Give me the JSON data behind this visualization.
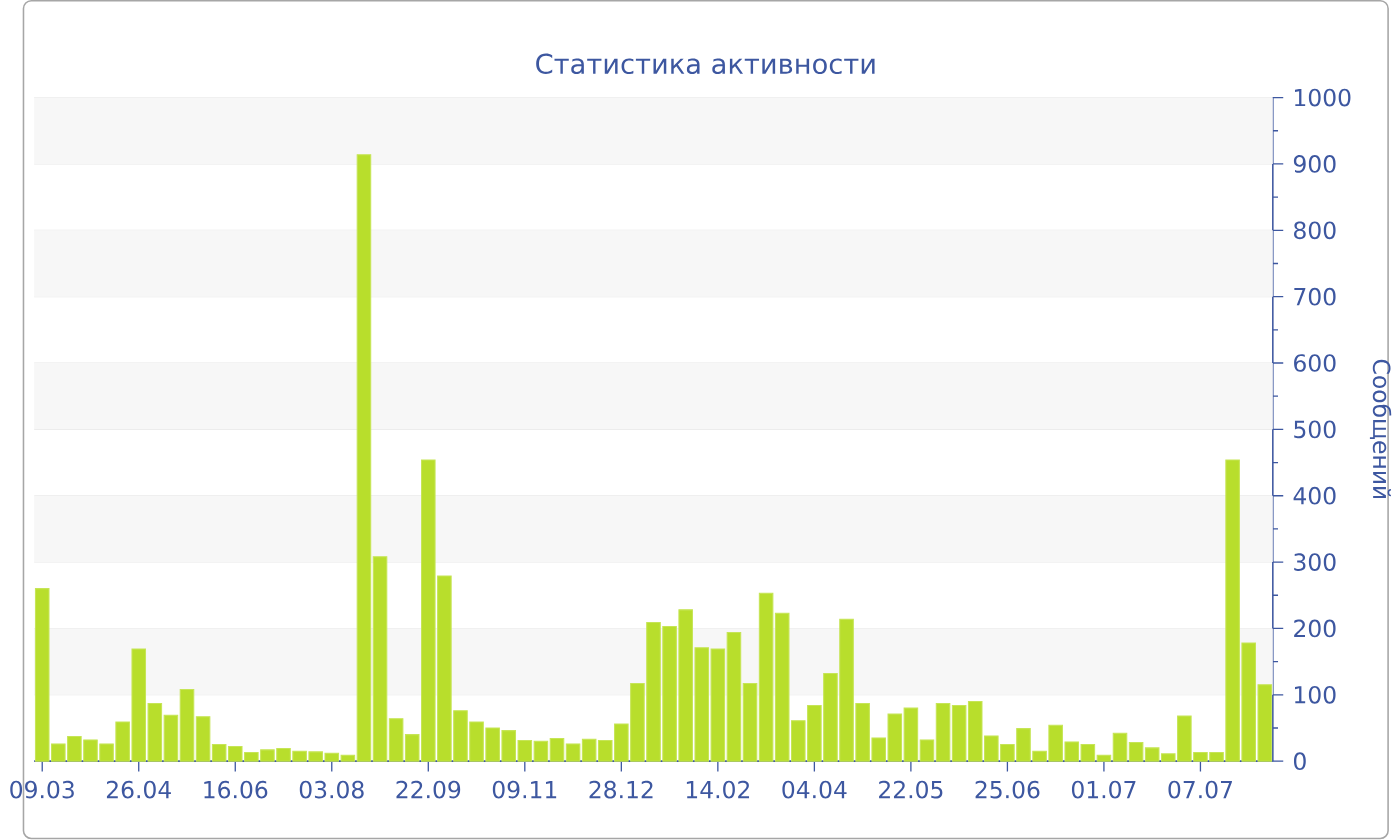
{
  "chart_data": {
    "type": "bar",
    "title": "Статистика активности",
    "ylabel": "Сообщений",
    "categories": [
      "09.03",
      null,
      null,
      null,
      null,
      null,
      "26.04",
      null,
      null,
      null,
      null,
      null,
      "16.06",
      null,
      null,
      null,
      null,
      null,
      "03.08",
      null,
      null,
      null,
      null,
      null,
      "22.09",
      null,
      null,
      null,
      null,
      null,
      "09.11",
      null,
      null,
      null,
      null,
      null,
      "28.12",
      null,
      null,
      null,
      null,
      null,
      "14.02",
      null,
      null,
      null,
      null,
      null,
      "04.04",
      null,
      null,
      null,
      null,
      null,
      "22.05",
      null,
      null,
      null,
      null,
      null,
      "25.06",
      null,
      null,
      null,
      null,
      null,
      "01.07",
      null,
      null,
      null,
      null,
      null,
      "07.07",
      null,
      null,
      null,
      null
    ],
    "values": [
      260,
      26,
      37,
      32,
      26,
      59,
      169,
      87,
      69,
      108,
      67,
      25,
      22,
      13,
      17,
      19,
      15,
      14,
      12,
      9,
      914,
      308,
      64,
      40,
      454,
      279,
      76,
      59,
      50,
      46,
      31,
      30,
      34,
      26,
      33,
      31,
      56,
      117,
      209,
      203,
      228,
      171,
      169,
      194,
      117,
      253,
      223,
      61,
      84,
      132,
      214,
      87,
      35,
      71,
      80,
      32,
      87,
      84,
      90,
      38,
      25,
      49,
      15,
      54,
      29,
      25,
      9,
      42,
      28,
      20,
      11,
      68,
      13,
      13,
      454,
      178,
      115
    ],
    "color": "#b8de2c",
    "ylim": [
      0,
      1000
    ],
    "yticks": [
      0,
      100,
      200,
      300,
      400,
      500,
      600,
      700,
      800,
      900,
      1000
    ],
    "grid": "y"
  }
}
